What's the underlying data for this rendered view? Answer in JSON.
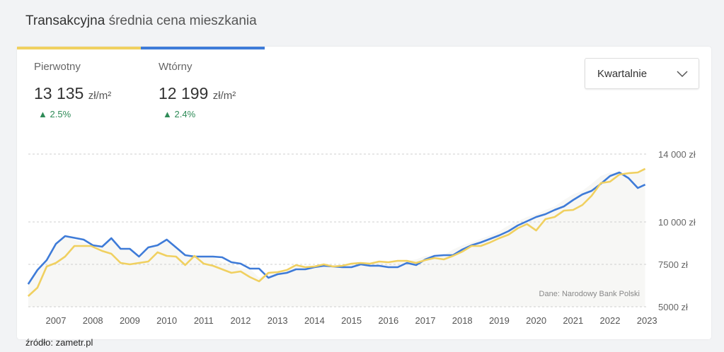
{
  "header": {
    "title_bold": "Transakcyjna",
    "title_rest": "średnia cena mieszkania"
  },
  "stats": [
    {
      "label": "Pierwotny",
      "value": "13 135",
      "unit": "zł/m²",
      "change": "2.5%",
      "color": "#f0d060"
    },
    {
      "label": "Wtórny",
      "value": "12 199",
      "unit": "zł/m²",
      "change": "2.4%",
      "color": "#3e7bd8"
    }
  ],
  "dropdown": {
    "selected": "Kwartalnie"
  },
  "footer": {
    "source": "źródło: zametr.pl"
  },
  "chart_data": {
    "type": "line",
    "annotation": "Dane: Narodowy Bank Polski",
    "x_ticks": [
      "2007",
      "2008",
      "2009",
      "2010",
      "2011",
      "2012",
      "2013",
      "2014",
      "2015",
      "2016",
      "2017",
      "2018",
      "2019",
      "2020",
      "2021",
      "2022",
      "2023"
    ],
    "y_ticks": [
      {
        "value": 5000,
        "label": "5000 zł"
      },
      {
        "value": 7500,
        "label": "7500 zł"
      },
      {
        "value": 10000,
        "label": "10 000 zł"
      },
      {
        "value": 14000,
        "label": "14 000 zł"
      }
    ],
    "ylim": [
      5000,
      14000
    ],
    "grid": true,
    "series": [
      {
        "name": "Pierwotny",
        "color": "#f0d060",
        "x": [
          2006.25,
          2006.5,
          2006.75,
          2007.0,
          2007.25,
          2007.5,
          2007.95,
          2008.25,
          2008.5,
          2008.75,
          2009.0,
          2009.25,
          2009.5,
          2009.75,
          2010.0,
          2010.25,
          2010.5,
          2010.75,
          2011.0,
          2011.25,
          2011.5,
          2011.75,
          2012.0,
          2012.25,
          2012.5,
          2012.75,
          2013.0,
          2013.25,
          2013.5,
          2013.75,
          2014.0,
          2014.25,
          2014.5,
          2014.75,
          2015.0,
          2015.25,
          2015.5,
          2015.75,
          2016.0,
          2016.25,
          2016.5,
          2016.75,
          2017.0,
          2017.25,
          2017.5,
          2017.75,
          2018.0,
          2018.25,
          2018.5,
          2018.75,
          2019.0,
          2019.25,
          2019.5,
          2019.75,
          2020.0,
          2020.25,
          2020.5,
          2020.75,
          2021.0,
          2021.25,
          2021.5,
          2021.75,
          2022.0,
          2022.25,
          2022.5,
          2022.75,
          2022.95
        ],
        "values": [
          5625,
          6125,
          7375,
          7583,
          7958,
          8583,
          8583,
          8292,
          8125,
          7583,
          7500,
          7583,
          7667,
          8208,
          8000,
          7958,
          7458,
          8000,
          7542,
          7417,
          7208,
          7000,
          7083,
          6750,
          6500,
          7000,
          7042,
          7167,
          7458,
          7333,
          7375,
          7500,
          7375,
          7417,
          7542,
          7583,
          7542,
          7667,
          7625,
          7708,
          7708,
          7583,
          7750,
          7875,
          7792,
          8000,
          8250,
          8583,
          8583,
          8792,
          9042,
          9250,
          9625,
          9875,
          9500,
          10167,
          10292,
          10667,
          10708,
          11000,
          11542,
          12292,
          12375,
          12792,
          12875,
          12917,
          13135
        ]
      },
      {
        "name": "Wtórny",
        "color": "#3e7bd8",
        "x": [
          2006.25,
          2006.5,
          2006.75,
          2007.0,
          2007.25,
          2007.75,
          2008.0,
          2008.25,
          2008.5,
          2008.75,
          2009.0,
          2009.25,
          2009.5,
          2009.75,
          2010.0,
          2010.25,
          2010.5,
          2010.75,
          2011.25,
          2011.5,
          2011.75,
          2012.0,
          2012.25,
          2012.5,
          2012.75,
          2013.0,
          2013.25,
          2013.5,
          2013.75,
          2014.0,
          2014.25,
          2014.5,
          2014.75,
          2015.0,
          2015.25,
          2015.5,
          2015.75,
          2016.0,
          2016.25,
          2016.5,
          2016.75,
          2017.0,
          2017.25,
          2017.5,
          2017.75,
          2018.0,
          2018.25,
          2018.5,
          2018.75,
          2019.0,
          2019.25,
          2019.5,
          2019.75,
          2020.0,
          2020.25,
          2020.5,
          2020.75,
          2021.0,
          2021.25,
          2021.5,
          2021.75,
          2022.0,
          2022.25,
          2022.5,
          2022.75,
          2022.95
        ],
        "values": [
          6333,
          7167,
          7750,
          8708,
          9167,
          8958,
          8625,
          8540,
          9040,
          8417,
          8417,
          7958,
          8500,
          8625,
          8958,
          8500,
          8042,
          7958,
          7958,
          7917,
          7625,
          7540,
          7250,
          7250,
          6708,
          6917,
          7000,
          7208,
          7208,
          7333,
          7417,
          7375,
          7333,
          7333,
          7500,
          7417,
          7417,
          7333,
          7333,
          7583,
          7458,
          7792,
          8000,
          8042,
          8042,
          8375,
          8625,
          8792,
          9000,
          9208,
          9458,
          9792,
          10042,
          10292,
          10458,
          10708,
          10917,
          11292,
          11625,
          11833,
          12250,
          12708,
          12917,
          12583,
          12000,
          12199
        ]
      }
    ]
  }
}
